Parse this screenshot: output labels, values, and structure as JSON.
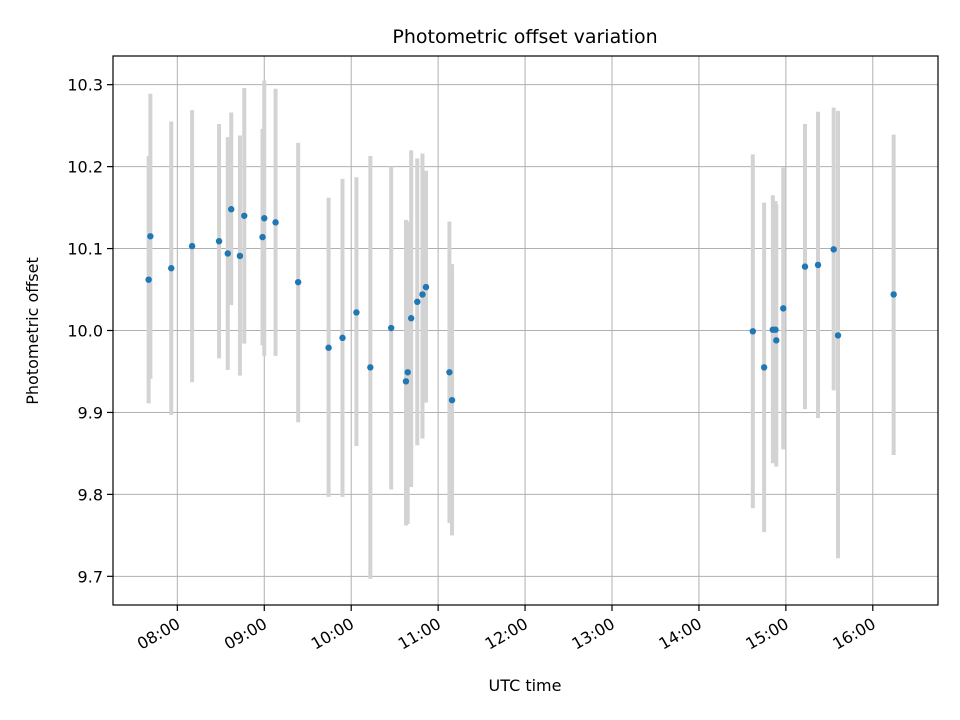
{
  "chart_data": {
    "type": "scatter",
    "title": "Photometric offset variation",
    "xlabel": "UTC time",
    "ylabel": "Photometric offset",
    "xlim_hours": [
      7.26,
      16.75
    ],
    "ylim": [
      9.665,
      10.335
    ],
    "grid": true,
    "x_ticks": [
      {
        "value": 8,
        "label": "08:00"
      },
      {
        "value": 9,
        "label": "09:00"
      },
      {
        "value": 10,
        "label": "10:00"
      },
      {
        "value": 11,
        "label": "11:00"
      },
      {
        "value": 12,
        "label": "12:00"
      },
      {
        "value": 13,
        "label": "13:00"
      },
      {
        "value": 14,
        "label": "14:00"
      },
      {
        "value": 15,
        "label": "15:00"
      },
      {
        "value": 16,
        "label": "16:00"
      }
    ],
    "y_ticks": [
      {
        "value": 9.7,
        "label": "9.7"
      },
      {
        "value": 9.8,
        "label": "9.8"
      },
      {
        "value": 9.9,
        "label": "9.9"
      },
      {
        "value": 10.0,
        "label": "10.0"
      },
      {
        "value": 10.1,
        "label": "10.1"
      },
      {
        "value": 10.2,
        "label": "10.2"
      },
      {
        "value": 10.3,
        "label": "10.3"
      }
    ],
    "colors": {
      "point": "#1f77b4",
      "errorbar": "#d3d3d3",
      "grid": "#b0b0b0"
    },
    "points": [
      {
        "x": 7.67,
        "y": 10.062,
        "lo": 9.911,
        "hi": 10.213
      },
      {
        "x": 7.69,
        "y": 10.115,
        "lo": 9.941,
        "hi": 10.289
      },
      {
        "x": 7.93,
        "y": 10.076,
        "lo": 9.897,
        "hi": 10.255
      },
      {
        "x": 8.17,
        "y": 10.103,
        "lo": 9.937,
        "hi": 10.269
      },
      {
        "x": 8.48,
        "y": 10.109,
        "lo": 9.966,
        "hi": 10.252
      },
      {
        "x": 8.58,
        "y": 10.094,
        "lo": 9.952,
        "hi": 10.236
      },
      {
        "x": 8.62,
        "y": 10.148,
        "lo": 10.031,
        "hi": 10.266
      },
      {
        "x": 8.72,
        "y": 10.091,
        "lo": 9.945,
        "hi": 10.238
      },
      {
        "x": 8.77,
        "y": 10.14,
        "lo": 9.984,
        "hi": 10.296
      },
      {
        "x": 8.98,
        "y": 10.114,
        "lo": 9.982,
        "hi": 10.246
      },
      {
        "x": 9.0,
        "y": 10.137,
        "lo": 9.969,
        "hi": 10.305
      },
      {
        "x": 9.13,
        "y": 10.132,
        "lo": 9.969,
        "hi": 10.295
      },
      {
        "x": 9.39,
        "y": 10.059,
        "lo": 9.888,
        "hi": 10.229
      },
      {
        "x": 9.74,
        "y": 9.979,
        "lo": 9.797,
        "hi": 10.162
      },
      {
        "x": 9.9,
        "y": 9.991,
        "lo": 9.797,
        "hi": 10.185
      },
      {
        "x": 10.06,
        "y": 10.022,
        "lo": 9.859,
        "hi": 10.187
      },
      {
        "x": 10.22,
        "y": 9.955,
        "lo": 9.697,
        "hi": 10.213
      },
      {
        "x": 10.46,
        "y": 10.003,
        "lo": 9.806,
        "hi": 10.2
      },
      {
        "x": 10.63,
        "y": 9.938,
        "lo": 9.762,
        "hi": 10.135
      },
      {
        "x": 10.65,
        "y": 9.949,
        "lo": 9.764,
        "hi": 10.133
      },
      {
        "x": 10.69,
        "y": 10.015,
        "lo": 9.809,
        "hi": 10.22
      },
      {
        "x": 10.76,
        "y": 10.035,
        "lo": 9.86,
        "hi": 10.21
      },
      {
        "x": 10.82,
        "y": 10.044,
        "lo": 9.868,
        "hi": 10.216
      },
      {
        "x": 10.86,
        "y": 10.053,
        "lo": 9.912,
        "hi": 10.195
      },
      {
        "x": 11.13,
        "y": 9.949,
        "lo": 9.765,
        "hi": 10.133
      },
      {
        "x": 11.16,
        "y": 9.915,
        "lo": 9.75,
        "hi": 10.081
      },
      {
        "x": 14.62,
        "y": 9.999,
        "lo": 9.783,
        "hi": 10.215
      },
      {
        "x": 14.75,
        "y": 9.955,
        "lo": 9.754,
        "hi": 10.156
      },
      {
        "x": 14.85,
        "y": 10.001,
        "lo": 9.838,
        "hi": 10.165
      },
      {
        "x": 14.88,
        "y": 10.001,
        "lo": 9.844,
        "hi": 10.158
      },
      {
        "x": 14.89,
        "y": 9.988,
        "lo": 9.834,
        "hi": 10.154
      },
      {
        "x": 14.97,
        "y": 10.027,
        "lo": 9.855,
        "hi": 10.199
      },
      {
        "x": 15.22,
        "y": 10.078,
        "lo": 9.904,
        "hi": 10.252
      },
      {
        "x": 15.37,
        "y": 10.08,
        "lo": 9.893,
        "hi": 10.267
      },
      {
        "x": 15.55,
        "y": 10.099,
        "lo": 9.927,
        "hi": 10.272
      },
      {
        "x": 15.6,
        "y": 9.994,
        "lo": 9.722,
        "hi": 10.268
      },
      {
        "x": 16.24,
        "y": 10.044,
        "lo": 9.848,
        "hi": 10.239
      }
    ]
  }
}
